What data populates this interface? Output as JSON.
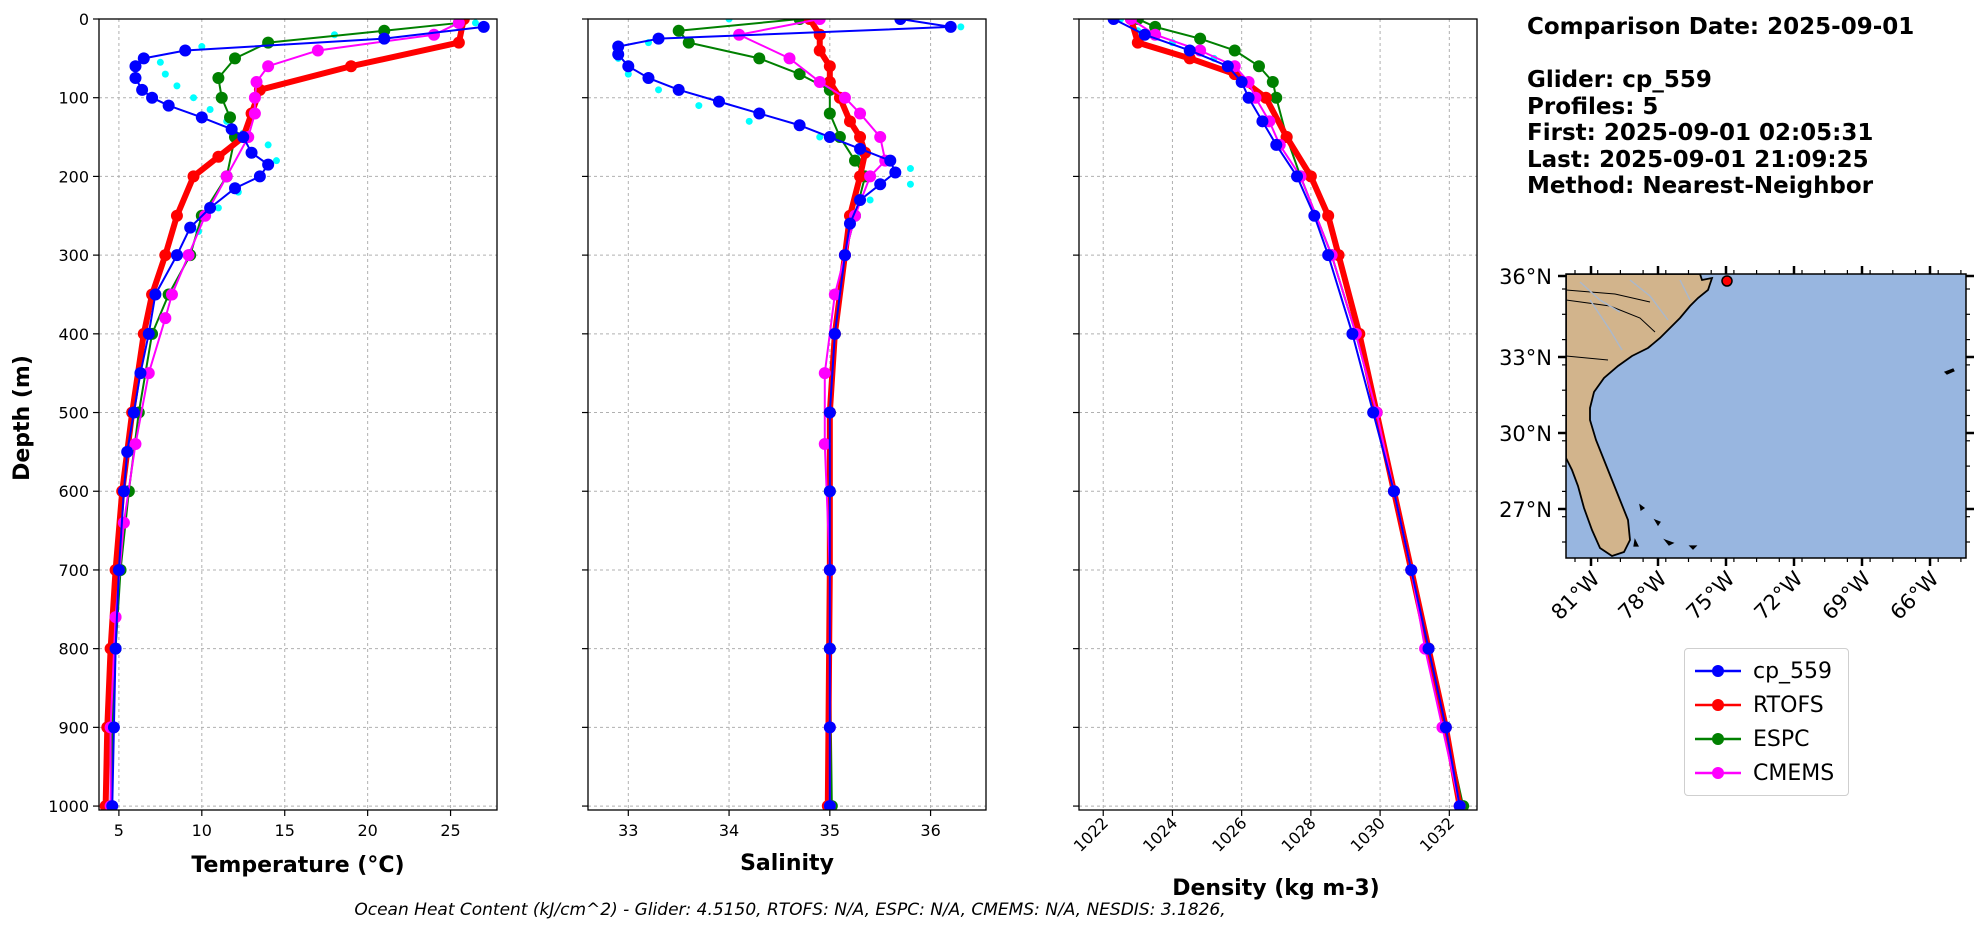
{
  "info": {
    "comparison_date": "Comparison Date: 2025-09-01",
    "glider": "Glider: cp_559",
    "profiles": "Profiles: 5",
    "first": "First: 2025-09-01 02:05:31",
    "last": "Last: 2025-09-01 21:09:25",
    "method": "Method: Nearest-Neighbor"
  },
  "footer": "Ocean Heat Content (kJ/cm^2) - Glider: 4.5150,  RTOFS: N/A,  ESPC: N/A,  CMEMS: N/A,  NESDIS: 3.1826,",
  "colors": {
    "cp_559": "#0000ff",
    "RTOFS": "#ff0000",
    "ESPC": "#008000",
    "CMEMS": "#ff00ff",
    "glider_raw": "#00ffff",
    "land": "#d2b48c",
    "ocean": "#98b6e0"
  },
  "legend": [
    {
      "name": "cp_559",
      "color": "#0000ff"
    },
    {
      "name": "RTOFS",
      "color": "#ff0000"
    },
    {
      "name": "ESPC",
      "color": "#008000"
    },
    {
      "name": "CMEMS",
      "color": "#ff00ff"
    }
  ],
  "chart_data": [
    {
      "type": "line",
      "xlabel": "Temperature (°C)",
      "ylabel": "Depth (m)",
      "xlim": [
        3.8,
        27.8
      ],
      "ylim": [
        1005,
        0
      ],
      "xticks": [
        5,
        10,
        15,
        20,
        25
      ],
      "yticks": [
        0,
        100,
        200,
        300,
        400,
        500,
        600,
        700,
        800,
        900,
        1000
      ],
      "grid": true,
      "series": [
        {
          "name": "cp_559",
          "depth": [
            10,
            25,
            40,
            50,
            60,
            75,
            90,
            100,
            110,
            125,
            140,
            150,
            170,
            185,
            200,
            215,
            240,
            265,
            300,
            350,
            400,
            450,
            500,
            550,
            600,
            700,
            800,
            900,
            1000
          ],
          "values": [
            27,
            21,
            9,
            6.5,
            6,
            6,
            6.4,
            7,
            8,
            10,
            11.8,
            12.5,
            13,
            14,
            13.5,
            12,
            10.5,
            9.3,
            8.5,
            7.2,
            6.8,
            6.3,
            5.9,
            5.5,
            5.3,
            5.0,
            4.8,
            4.7,
            4.6
          ]
        },
        {
          "name": "RTOFS",
          "depth": [
            0,
            30,
            60,
            90,
            120,
            150,
            175,
            200,
            250,
            300,
            350,
            400,
            500,
            600,
            700,
            800,
            900,
            1000
          ],
          "values": [
            25.8,
            25.5,
            19,
            13.5,
            13,
            12.5,
            11,
            9.5,
            8.5,
            7.8,
            7.0,
            6.5,
            5.8,
            5.2,
            4.8,
            4.5,
            4.3,
            4.2
          ]
        },
        {
          "name": "ESPC",
          "depth": [
            5,
            15,
            30,
            50,
            75,
            100,
            125,
            150,
            200,
            250,
            300,
            350,
            400,
            500,
            600,
            700,
            800,
            900,
            1000
          ],
          "values": [
            25.5,
            21,
            14,
            12,
            11,
            11.2,
            11.7,
            12,
            11.5,
            10,
            9.3,
            8.0,
            7.0,
            6.2,
            5.6,
            5.1,
            4.8,
            4.6,
            4.5
          ]
        },
        {
          "name": "CMEMS",
          "depth": [
            5,
            20,
            40,
            60,
            80,
            100,
            120,
            150,
            200,
            250,
            300,
            350,
            380,
            450,
            540,
            640,
            760,
            900,
            1000
          ],
          "values": [
            25.5,
            24,
            17,
            14,
            13.3,
            13.2,
            13.2,
            12.8,
            11.5,
            10.2,
            9.2,
            8.2,
            7.8,
            6.8,
            6.0,
            5.3,
            4.8,
            4.5,
            4.5
          ]
        },
        {
          "name": "glider_raw",
          "depth": [
            5,
            20,
            35,
            55,
            70,
            85,
            100,
            115,
            130,
            145,
            160,
            180,
            200,
            220,
            240,
            270
          ],
          "values": [
            26.5,
            18,
            10,
            7.5,
            7.8,
            8.5,
            9.5,
            10.5,
            11.5,
            12.5,
            14,
            14.5,
            13.5,
            12.2,
            11,
            9.8
          ]
        }
      ]
    },
    {
      "type": "line",
      "xlabel": "Salinity",
      "xlim": [
        32.6,
        36.55
      ],
      "ylim": [
        1005,
        0
      ],
      "xticks": [
        33,
        34,
        35,
        36
      ],
      "grid": true,
      "series": [
        {
          "name": "cp_559",
          "depth": [
            0,
            10,
            25,
            35,
            45,
            60,
            75,
            90,
            105,
            120,
            135,
            150,
            165,
            180,
            195,
            210,
            230,
            260,
            300,
            400,
            500,
            600,
            700,
            800,
            900,
            1000
          ],
          "values": [
            35.7,
            36.2,
            33.3,
            32.9,
            32.9,
            33.0,
            33.2,
            33.5,
            33.9,
            34.3,
            34.7,
            35.0,
            35.3,
            35.6,
            35.65,
            35.5,
            35.3,
            35.2,
            35.15,
            35.05,
            35.0,
            35.0,
            35.0,
            35.0,
            35.0,
            35.0
          ]
        },
        {
          "name": "RTOFS",
          "depth": [
            0,
            20,
            40,
            60,
            80,
            100,
            130,
            150,
            170,
            200,
            250,
            300,
            400,
            500,
            700,
            1000
          ],
          "values": [
            34.8,
            34.9,
            34.9,
            35.0,
            35.0,
            35.1,
            35.2,
            35.3,
            35.35,
            35.3,
            35.2,
            35.15,
            35.05,
            35.0,
            35.0,
            34.98
          ]
        },
        {
          "name": "ESPC",
          "depth": [
            0,
            15,
            30,
            50,
            70,
            90,
            120,
            150,
            180,
            200,
            250,
            300,
            400,
            500,
            600,
            800,
            1000
          ],
          "values": [
            34.7,
            33.5,
            33.6,
            34.3,
            34.7,
            35.0,
            35.0,
            35.1,
            35.25,
            35.35,
            35.25,
            35.15,
            35.05,
            35.0,
            35.0,
            35.0,
            35.02
          ]
        },
        {
          "name": "CMEMS",
          "depth": [
            0,
            20,
            50,
            80,
            100,
            120,
            150,
            180,
            200,
            250,
            300,
            350,
            450,
            540,
            700,
            900,
            1000
          ],
          "values": [
            34.9,
            34.1,
            34.6,
            34.9,
            35.15,
            35.3,
            35.5,
            35.55,
            35.4,
            35.25,
            35.15,
            35.05,
            34.95,
            34.95,
            35.0,
            35.0,
            35.0
          ]
        },
        {
          "name": "glider_raw",
          "depth": [
            0,
            10,
            30,
            50,
            70,
            90,
            110,
            130,
            150,
            170,
            190,
            210,
            230
          ],
          "values": [
            34.0,
            36.3,
            33.2,
            32.9,
            33.0,
            33.3,
            33.7,
            34.2,
            34.9,
            35.3,
            35.8,
            35.8,
            35.4
          ]
        }
      ]
    },
    {
      "type": "line",
      "xlabel": "Density (kg m-3)",
      "xlim": [
        1021.3,
        1032.8
      ],
      "ylim": [
        1005,
        0
      ],
      "xticks": [
        1022,
        1024,
        1026,
        1028,
        1030,
        1032
      ],
      "grid": true,
      "series": [
        {
          "name": "cp_559",
          "depth": [
            0,
            20,
            40,
            60,
            80,
            100,
            130,
            160,
            200,
            250,
            300,
            400,
            500,
            600,
            700,
            800,
            900,
            1000
          ],
          "values": [
            1022.3,
            1023.2,
            1024.5,
            1025.6,
            1026.0,
            1026.2,
            1026.6,
            1027.0,
            1027.6,
            1028.1,
            1028.5,
            1029.2,
            1029.8,
            1030.4,
            1030.9,
            1031.4,
            1031.9,
            1032.3
          ]
        },
        {
          "name": "RTOFS",
          "depth": [
            0,
            30,
            50,
            70,
            100,
            150,
            200,
            250,
            300,
            400,
            500,
            600,
            700,
            800,
            900,
            1000
          ],
          "values": [
            1022.8,
            1023.0,
            1024.5,
            1025.8,
            1026.7,
            1027.3,
            1028.0,
            1028.5,
            1028.8,
            1029.4,
            1029.9,
            1030.4,
            1030.9,
            1031.4,
            1031.9,
            1032.3
          ]
        },
        {
          "name": "ESPC",
          "depth": [
            0,
            10,
            25,
            40,
            60,
            80,
            100,
            150,
            200,
            300,
            400,
            500,
            600,
            800,
            1000
          ],
          "values": [
            1023.0,
            1023.5,
            1024.8,
            1025.8,
            1026.5,
            1026.9,
            1027.0,
            1027.3,
            1027.7,
            1028.6,
            1029.3,
            1029.9,
            1030.4,
            1031.4,
            1032.4
          ]
        },
        {
          "name": "CMEMS",
          "depth": [
            0,
            20,
            40,
            60,
            80,
            100,
            130,
            160,
            200,
            300,
            400,
            500,
            600,
            700,
            800,
            900,
            1000
          ],
          "values": [
            1022.8,
            1023.5,
            1024.8,
            1025.8,
            1026.2,
            1026.4,
            1026.8,
            1027.1,
            1027.7,
            1028.6,
            1029.3,
            1029.9,
            1030.4,
            1030.9,
            1031.3,
            1031.8,
            1032.3
          ]
        },
        {
          "name": "glider_raw",
          "depth": [
            0,
            15,
            30,
            50,
            70
          ],
          "values": [
            1022.5,
            1023.0,
            1024.0,
            1025.2,
            1025.8
          ]
        }
      ]
    }
  ],
  "map": {
    "lat_labels": [
      "36°N",
      "33°N",
      "30°N",
      "27°N"
    ],
    "lon_labels": [
      "81°W",
      "78°W",
      "75°W",
      "72°W",
      "69°W",
      "66°W"
    ],
    "glider_position": {
      "lat": 35.9,
      "lon": -75.2
    }
  }
}
